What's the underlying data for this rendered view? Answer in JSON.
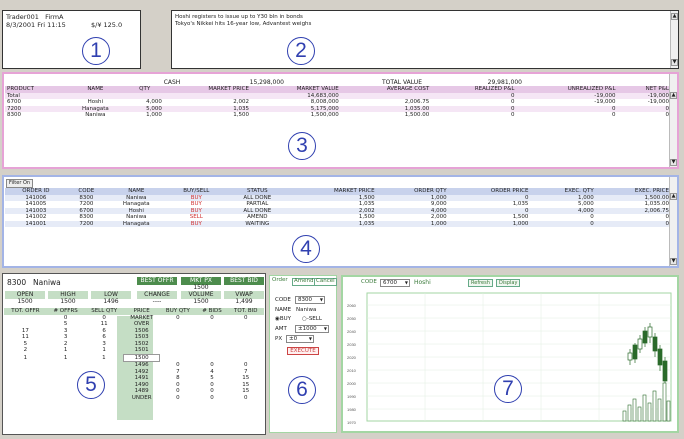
{
  "panel1": {
    "trader": "Trader001",
    "firm": "FirmA",
    "date": "8/3/2001 Fri 11:15",
    "fx": "$/¥ 125.0",
    "number": "1"
  },
  "panel2": {
    "news": [
      "Hoshi registers to issue up to Y30 bln in bonds",
      "Tokyo's Nikkei hits 16-year low, Advantest weighs"
    ],
    "number": "2"
  },
  "panel3": {
    "number": "3",
    "top_labels": {
      "cash": "CASH",
      "cash_value": "15,298,000",
      "total_value": "TOTAL VALUE",
      "total_value_value": "29,981,000"
    },
    "headers": [
      "PRODUCT",
      "NAME",
      "QTY",
      "MARKET PRICE",
      "MARKET VALUE",
      "AVERAGE COST",
      "REALIZED P&L",
      "UNREALIZED P&L",
      "NET P&L"
    ],
    "rows": [
      [
        "Total",
        "",
        "",
        "",
        "14,683,000",
        "",
        "0",
        "-19,000",
        "-19,000"
      ],
      [
        "6700",
        "Hoshi",
        "4,000",
        "2,002",
        "8,008,000",
        "2,006.75",
        "0",
        "-19,000",
        "-19,000"
      ],
      [
        "7200",
        "Hanagata",
        "5,000",
        "1,035",
        "5,175,000",
        "1,035.00",
        "0",
        "0",
        "0"
      ],
      [
        "8300",
        "Naniwa",
        "1,000",
        "1,500",
        "1,500,000",
        "1,500.00",
        "0",
        "0",
        "0"
      ]
    ]
  },
  "panel4": {
    "number": "4",
    "filter_label": "Filter On",
    "headers": [
      "ORDER ID",
      "CODE",
      "NAME",
      "BUY/SELL",
      "STATUS",
      "MARKET PRICE",
      "ORDER QTY",
      "ORDER PRICE",
      "EXEC. QTY",
      "EXEC. PRICE"
    ],
    "rows": [
      [
        "141006",
        "8300",
        "Naniwa",
        "BUY",
        "ALL DONE",
        "1,500",
        "1,000",
        "0",
        "1,000",
        "1,500.00"
      ],
      [
        "141005",
        "7200",
        "Hanagata",
        "BUY",
        "PARTIAL",
        "1,035",
        "9,000",
        "1,035",
        "5,000",
        "1,035.00"
      ],
      [
        "141003",
        "6700",
        "Hoshi",
        "BUY",
        "ALL DONE",
        "2,002",
        "4,000",
        "0",
        "4,000",
        "2,006.75"
      ],
      [
        "141002",
        "8300",
        "Naniwa",
        "SELL",
        "AMEND",
        "1,500",
        "2,000",
        "1,500",
        "0",
        "0"
      ],
      [
        "141001",
        "7200",
        "Hanagata",
        "BUY",
        "WAITING",
        "1,035",
        "1,000",
        "1,000",
        "0",
        "0"
      ]
    ]
  },
  "panel5": {
    "number": "5",
    "code": "8300",
    "name": "Naniwa",
    "labels": {
      "best_offr": "BEST OFFR",
      "mkt_px": "MKT PX",
      "best_bid": "BEST BID",
      "open": "OPEN",
      "high": "HIGH",
      "low": "LOW",
      "change": "CHANGE",
      "volume": "VOLUME",
      "vwap": "VWAP"
    },
    "values": {
      "mkt_px": "1500",
      "open": "1500",
      "high": "1500",
      "low": "1496",
      "change": "----",
      "volume": "1500",
      "vwap": "1,499"
    },
    "book_headers": [
      "TOT. OFFR",
      "# OFFRS",
      "SELL QTY",
      "PRICE",
      "BUY QTY",
      "# BIDS",
      "TOT. BID"
    ],
    "book": [
      [
        "",
        "0",
        "0",
        "MARKET",
        "0",
        "0",
        "0"
      ],
      [
        "",
        "5",
        "11",
        "OVER",
        "",
        "",
        ""
      ],
      [
        "",
        "",
        "",
        "",
        "",
        "",
        ""
      ],
      [
        "17",
        "3",
        "6",
        "1506",
        "",
        "",
        ""
      ],
      [
        "11",
        "3",
        "6",
        "1503",
        "",
        "",
        ""
      ],
      [
        "5",
        "2",
        "3",
        "1502",
        "",
        "",
        ""
      ],
      [
        "2",
        "1",
        "1",
        "1501",
        "",
        "",
        ""
      ],
      [
        "1",
        "1",
        "1",
        "1500",
        "",
        "",
        ""
      ],
      [
        "",
        "",
        "",
        "1496",
        "0",
        "0",
        "0"
      ],
      [
        "",
        "",
        "",
        "1492",
        "7",
        "4",
        "7"
      ],
      [
        "",
        "",
        "",
        "1491",
        "8",
        "5",
        "15"
      ],
      [
        "",
        "",
        "",
        "1490",
        "0",
        "0",
        "15"
      ],
      [
        "",
        "",
        "",
        "1489",
        "0",
        "0",
        "15"
      ],
      [
        "",
        "",
        "",
        "",
        "",
        "",
        ""
      ],
      [
        "",
        "",
        "",
        "",
        "",
        "",
        ""
      ],
      [
        "",
        "",
        "",
        "UNDER",
        "0",
        "0",
        "0"
      ]
    ]
  },
  "panel6": {
    "number": "6",
    "tabs": [
      "Order",
      "Amend",
      "Cancel"
    ],
    "code_label": "CODE",
    "code_value": "8300",
    "name_label": "NAME",
    "name_value": "Naniwa",
    "buy_label": "BUY",
    "sell_label": "SELL",
    "amt_label": "AMT",
    "amt_value": "1000",
    "px_label": "PX",
    "px_value": "0",
    "execute_label": "EXECUTE"
  },
  "panel7": {
    "number": "7",
    "code_label": "CODE",
    "code_value": "6700",
    "name_value": "Hoshi",
    "refresh_label": "Refresh",
    "display_label": "Display",
    "y_ticks": [
      "2060",
      "2050",
      "2040",
      "2030",
      "2020",
      "2010",
      "2000",
      "1990",
      "1980",
      "1970"
    ]
  },
  "colors": {
    "pink": "#e6a3d6",
    "blue": "#a3b4e6",
    "green": "#a3d6a3",
    "buy": "#d03030",
    "sell": "#d03030",
    "panel_num": "#3040b0"
  }
}
